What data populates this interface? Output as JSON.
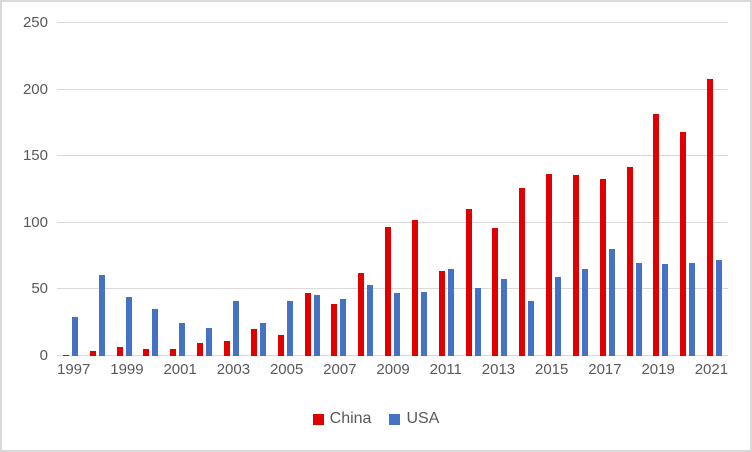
{
  "chart_data": {
    "type": "bar",
    "title": "",
    "categories": [
      "1997",
      "1998",
      "1999",
      "2000",
      "2001",
      "2002",
      "2003",
      "2004",
      "2005",
      "2006",
      "2007",
      "2008",
      "2009",
      "2010",
      "2011",
      "2012",
      "2013",
      "2014",
      "2015",
      "2016",
      "2017",
      "2018",
      "2019",
      "2020",
      "2021"
    ],
    "series": [
      {
        "name": "China",
        "color": "#E00000",
        "values": [
          1,
          4,
          7,
          5,
          5,
          10,
          11,
          20,
          16,
          47,
          39,
          62,
          97,
          102,
          64,
          110,
          96,
          126,
          137,
          136,
          133,
          142,
          182,
          168,
          208
        ]
      },
      {
        "name": "USA",
        "color": "#4472C4",
        "values": [
          29,
          61,
          44,
          35,
          25,
          21,
          41,
          25,
          41,
          46,
          43,
          53,
          47,
          48,
          65,
          51,
          58,
          41,
          59,
          65,
          80,
          70,
          69,
          70,
          72
        ]
      }
    ],
    "xlabel": "",
    "ylabel": "",
    "ylim": [
      0,
      250
    ],
    "y_ticks": [
      0,
      50,
      100,
      150,
      200,
      250
    ],
    "x_tick_labels": [
      "1997",
      "1999",
      "2001",
      "2003",
      "2005",
      "2007",
      "2009",
      "2011",
      "2013",
      "2015",
      "2017",
      "2019",
      "2021"
    ],
    "grid": "horizontal",
    "legend_position": "bottom"
  },
  "colors": {
    "gridline": "#D9D9D9",
    "axis_text": "#595959",
    "frame_border": "#D9D9D9",
    "background": "#FFFFFF"
  }
}
